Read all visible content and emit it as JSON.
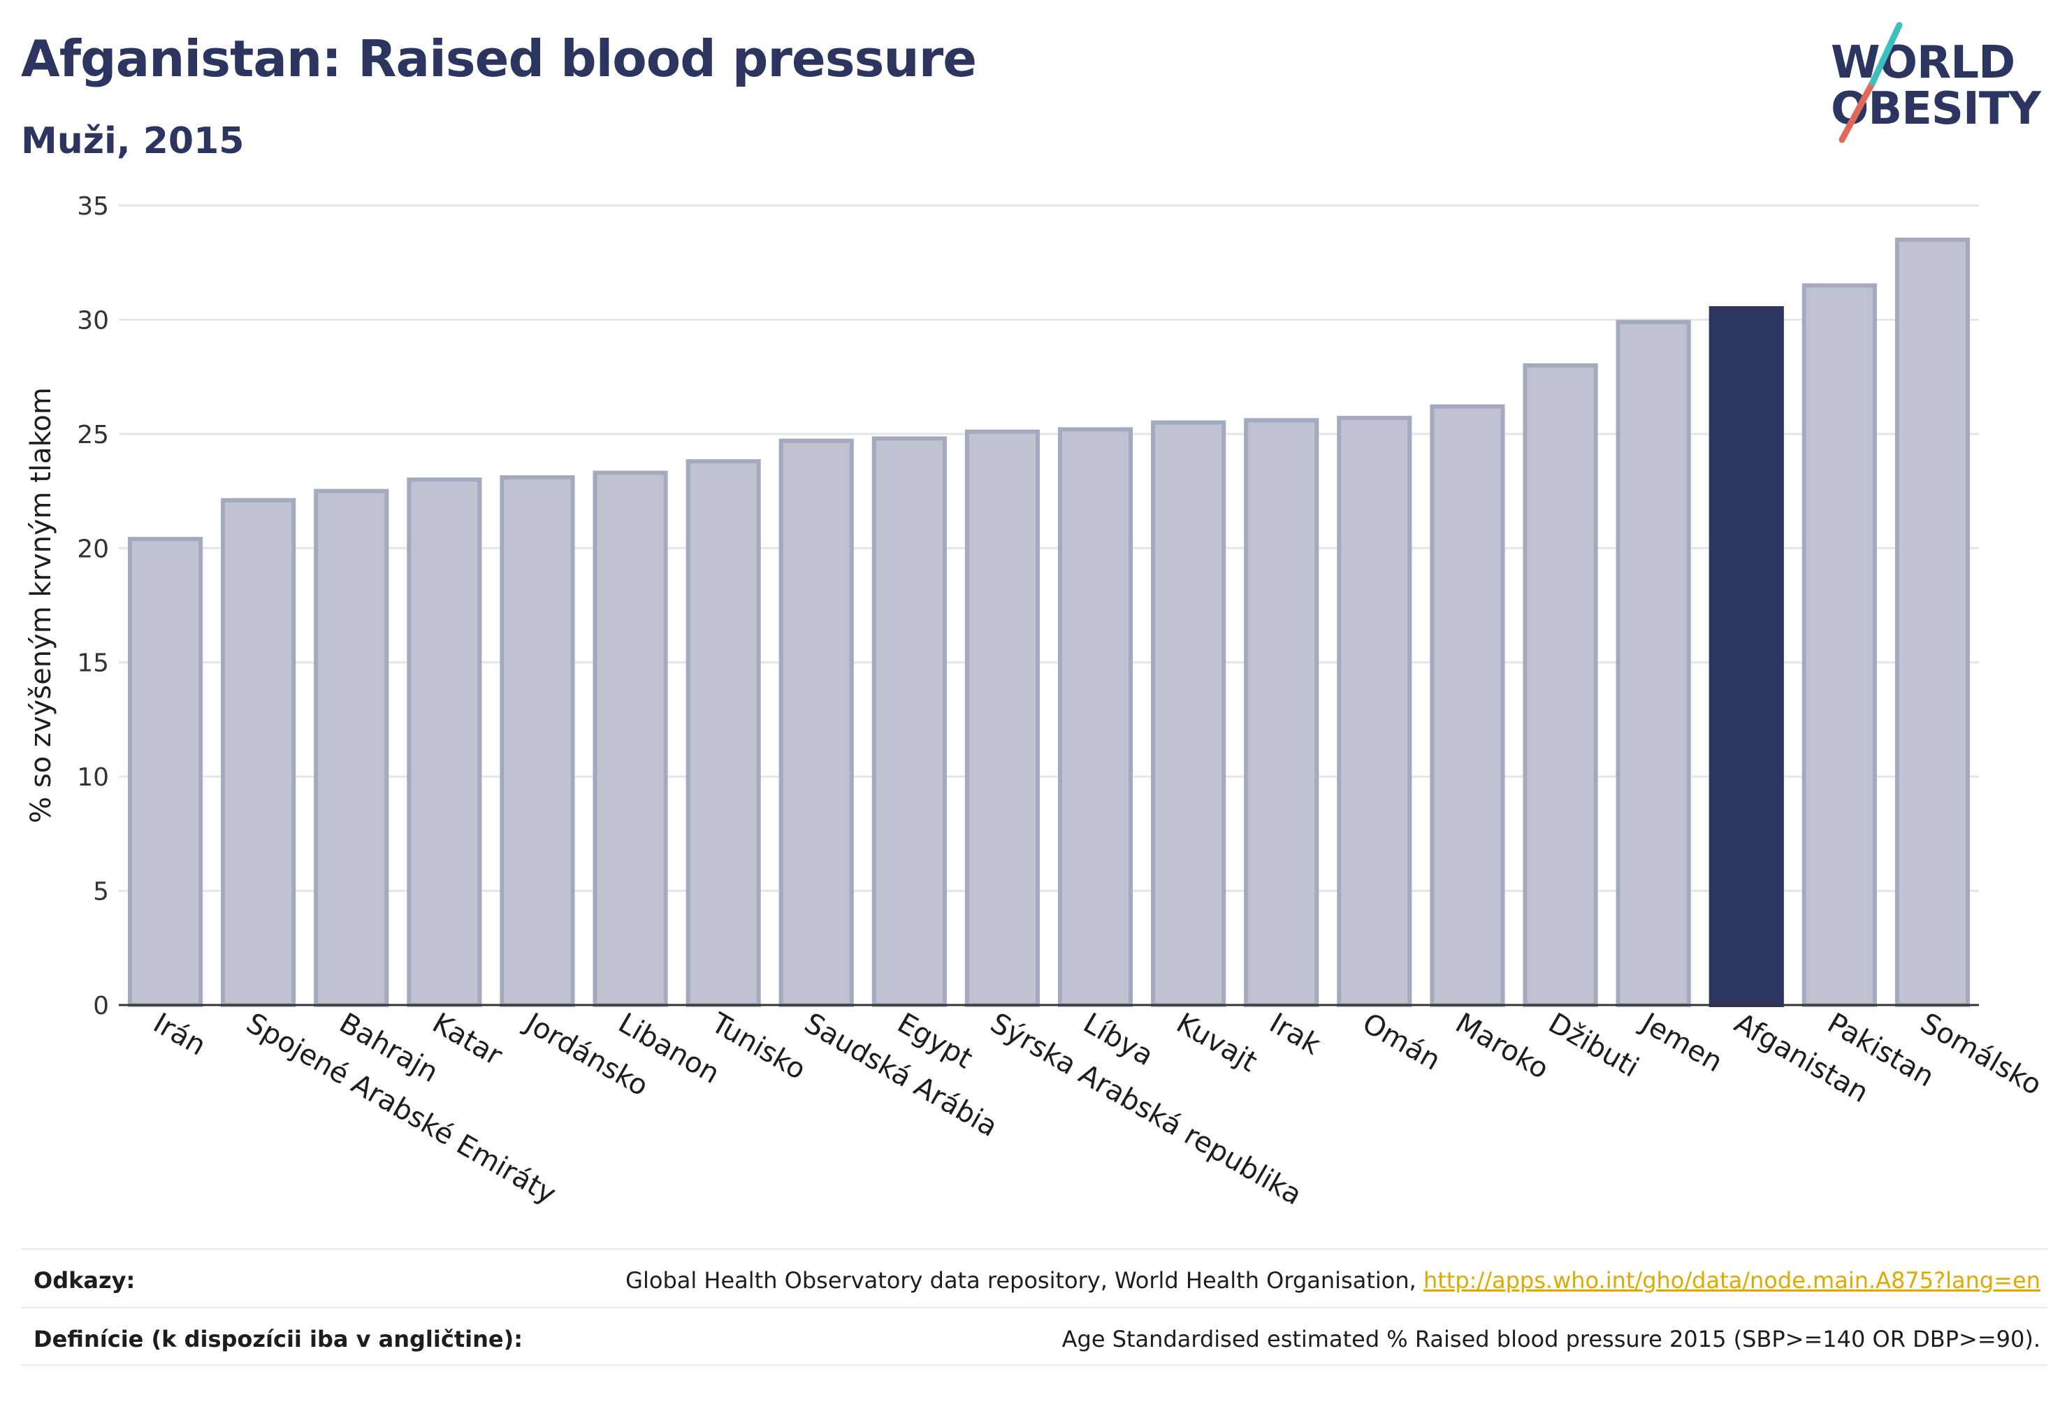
{
  "title": "Afganistan: Raised blood pressure",
  "subtitle": "Muži, 2015",
  "logo": {
    "line1": "WORLD",
    "line2": "OBESITY",
    "accent_colors": [
      "#e06a5a",
      "#3bbfbf"
    ]
  },
  "colors": {
    "bar_default": "#bfc3d1",
    "bar_default_stroke": "#a3a9be",
    "bar_highlight": "#2b3560",
    "grid": "#e6e6ea",
    "axis": "#333333"
  },
  "chart_data": {
    "type": "bar",
    "ylabel": "% so zvýšeným krvným tlakom",
    "ylim": [
      0,
      35
    ],
    "yticks": [
      0,
      5,
      10,
      15,
      20,
      25,
      30,
      35
    ],
    "grid": true,
    "highlight": "Afganistan",
    "categories": [
      "Irán",
      "Spojené Arabské Emiráty",
      "Bahrajn",
      "Katar",
      "Jordánsko",
      "Libanon",
      "Tunisko",
      "Saudská Arábia",
      "Egypt",
      "Sýrska Arabská republika",
      "Líbya",
      "Kuvajt",
      "Irak",
      "Omán",
      "Maroko",
      "Džibuti",
      "Jemen",
      "Afganistan",
      "Pakistan",
      "Somálsko"
    ],
    "values": [
      20.4,
      22.1,
      22.5,
      23.0,
      23.1,
      23.3,
      23.8,
      24.7,
      24.8,
      25.1,
      25.2,
      25.5,
      25.6,
      25.7,
      26.2,
      28.0,
      29.9,
      30.5,
      31.5,
      33.5
    ]
  },
  "footer": {
    "sources_label": "Odkazy:",
    "sources_text": "Global Health Observatory data repository, World Health Organisation, ",
    "sources_link": "http://apps.who.int/gho/data/node.main.A875?lang=en",
    "definition_label": "Definície (k dispozícii iba v angličtine):",
    "definition_text": "Age Standardised estimated % Raised blood pressure 2015 (SBP>=140 OR DBP>=90)."
  }
}
